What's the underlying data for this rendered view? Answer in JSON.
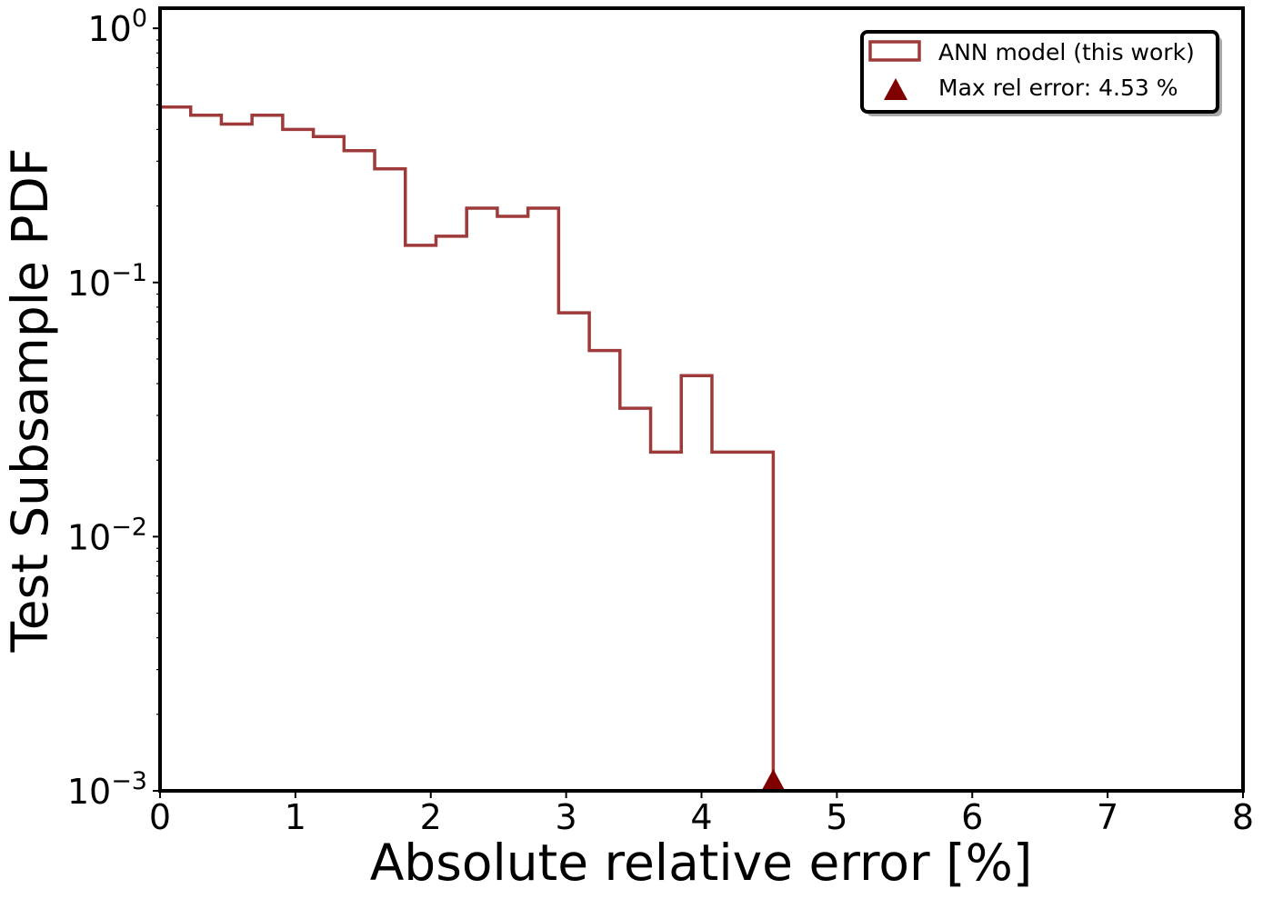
{
  "chart_data": {
    "type": "histogram",
    "title": "",
    "xlabel": "Absolute relative error [%]",
    "ylabel": "Test Subsample PDF",
    "xlim": [
      0,
      8
    ],
    "ylim": [
      0.001,
      1.2
    ],
    "yscale": "log",
    "grid": false,
    "legend_position": "top-right",
    "x_ticks": [
      "0",
      "1",
      "2",
      "3",
      "4",
      "5",
      "6",
      "7",
      "8"
    ],
    "y_ticks": [
      {
        "value": 1,
        "base": "10",
        "exp": "0"
      },
      {
        "value": 0.1,
        "base": "10",
        "exp": "−1"
      },
      {
        "value": 0.01,
        "base": "10",
        "exp": "−2"
      },
      {
        "value": 0.001,
        "base": "10",
        "exp": "−3"
      }
    ],
    "series": [
      {
        "name": "ANN model (this work)",
        "style": "step-histogram",
        "color": "#9e3a3a",
        "bin_edges": [
          0,
          0.2265,
          0.453,
          0.6795,
          0.906,
          1.1325,
          1.359,
          1.5855,
          1.812,
          2.0385,
          2.265,
          2.4915,
          2.718,
          2.9445,
          3.171,
          3.3975,
          3.624,
          3.8505,
          4.077,
          4.3035,
          4.53
        ],
        "values": [
          0.49,
          0.455,
          0.42,
          0.455,
          0.4,
          0.375,
          0.33,
          0.28,
          0.14,
          0.152,
          0.196,
          0.182,
          0.196,
          0.076,
          0.054,
          0.032,
          0.0215,
          0.043,
          0.0215,
          0.0215
        ]
      },
      {
        "name": "Max rel error: 4.53 %",
        "style": "marker-triangle",
        "color": "#800000",
        "x": 4.53,
        "y": 0.001
      }
    ]
  }
}
